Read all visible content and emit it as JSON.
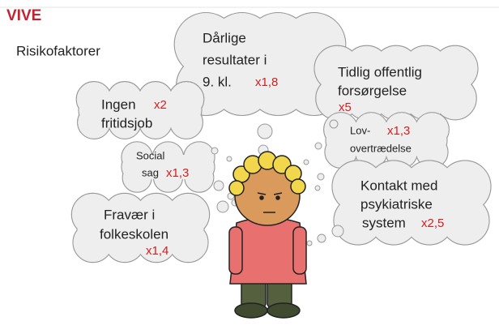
{
  "logo": "VIVE",
  "title": "Risikofaktorer",
  "clouds": [
    {
      "lines": [
        "Dårlige",
        "resultater i",
        "9. kl."
      ],
      "factor": "x1,8"
    },
    {
      "lines": [
        "Tidlig offentlig",
        "forsørgelse"
      ],
      "factor": "x5"
    },
    {
      "lines": [
        "Ingen",
        "fritidsjob"
      ],
      "factor": "x2"
    },
    {
      "lines": [
        "Lov-",
        "overtrædelse"
      ],
      "factor": "x1,3"
    },
    {
      "lines": [
        "Social",
        "sag"
      ],
      "factor": "x1,3"
    },
    {
      "lines": [
        "Kontakt med",
        "psykiatriske",
        "system"
      ],
      "factor": "x2,5"
    },
    {
      "lines": [
        "Fravær i",
        "folkeskolen"
      ],
      "factor": "x1,4"
    }
  ]
}
